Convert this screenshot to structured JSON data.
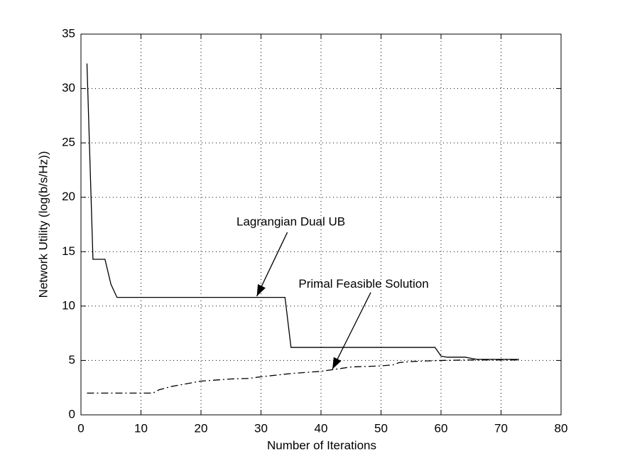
{
  "chart_data": {
    "type": "line",
    "xlabel": "Number of Iterations",
    "ylabel": "Network Utility (log(b/s/Hz))",
    "xlim": [
      0,
      80
    ],
    "ylim": [
      0,
      35
    ],
    "xticks": [
      0,
      10,
      20,
      30,
      40,
      50,
      60,
      70,
      80
    ],
    "yticks": [
      0,
      5,
      10,
      15,
      20,
      25,
      30,
      35
    ],
    "grid": true,
    "series": [
      {
        "name": "Lagrangian Dual UB",
        "color": "#000000",
        "style": "solid",
        "x": [
          1,
          2,
          4,
          5,
          6,
          34,
          35,
          59,
          60,
          61,
          64,
          65,
          66,
          73
        ],
        "values": [
          32.3,
          14.3,
          14.3,
          12,
          10.8,
          10.8,
          6.2,
          6.2,
          5.4,
          5.3,
          5.3,
          5.2,
          5.1,
          5.1
        ]
      },
      {
        "name": "Primal Feasible Solution",
        "color": "#000000",
        "style": "dashdot",
        "x": [
          1,
          12,
          13,
          15,
          20,
          25,
          28,
          30,
          35,
          40,
          45,
          50,
          52,
          53,
          55,
          60,
          65,
          73
        ],
        "values": [
          2.0,
          2.0,
          2.3,
          2.6,
          3.1,
          3.3,
          3.35,
          3.5,
          3.8,
          4.0,
          4.4,
          4.5,
          4.6,
          4.8,
          4.9,
          5.0,
          5.05,
          5.05
        ]
      }
    ],
    "annotations": [
      {
        "text": "Lagrangian Dual UB",
        "xy": [
          29.3,
          10.9
        ]
      },
      {
        "text": "Primal Feasible Solution",
        "xy": [
          41.9,
          4.2
        ]
      }
    ]
  }
}
